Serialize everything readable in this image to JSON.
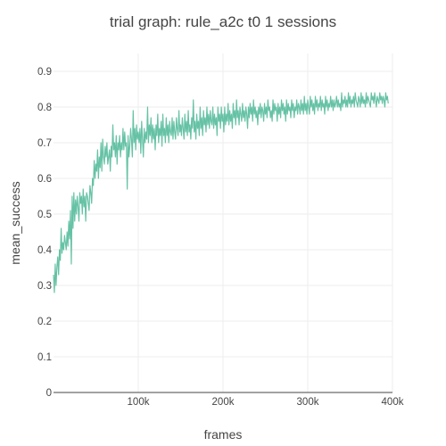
{
  "chart_data": {
    "type": "line",
    "title": "trial graph: rule_a2c t0 1 sessions",
    "xlabel": "frames",
    "ylabel": "mean_success",
    "xlim": [
      0,
      400000
    ],
    "ylim": [
      0,
      0.95
    ],
    "x_ticks": [
      100000,
      200000,
      300000,
      400000
    ],
    "x_tick_labels": [
      "100k",
      "200k",
      "300k",
      "400k"
    ],
    "y_ticks": [
      0,
      0.1,
      0.2,
      0.3,
      0.4,
      0.5,
      0.6,
      0.7,
      0.8,
      0.9
    ],
    "y_tick_labels": [
      "0",
      "0.1",
      "0.2",
      "0.3",
      "0.4",
      "0.5",
      "0.6",
      "0.7",
      "0.8",
      "0.9"
    ],
    "grid": true,
    "line_color": "#66c2a5",
    "series": [
      {
        "x_start": 0,
        "x_step": 1000,
        "values": [
          0.33,
          0.28,
          0.36,
          0.3,
          0.35,
          0.38,
          0.33,
          0.4,
          0.37,
          0.46,
          0.39,
          0.42,
          0.4,
          0.44,
          0.42,
          0.4,
          0.45,
          0.41,
          0.48,
          0.43,
          0.51,
          0.36,
          0.55,
          0.46,
          0.56,
          0.48,
          0.54,
          0.5,
          0.55,
          0.52,
          0.48,
          0.56,
          0.53,
          0.55,
          0.5,
          0.57,
          0.52,
          0.55,
          0.48,
          0.56,
          0.55,
          0.53,
          0.51,
          0.58,
          0.56,
          0.53,
          0.6,
          0.58,
          0.65,
          0.6,
          0.64,
          0.62,
          0.68,
          0.6,
          0.66,
          0.63,
          0.7,
          0.62,
          0.71,
          0.66,
          0.64,
          0.69,
          0.66,
          0.7,
          0.64,
          0.66,
          0.68,
          0.62,
          0.69,
          0.66,
          0.75,
          0.68,
          0.7,
          0.66,
          0.72,
          0.64,
          0.7,
          0.68,
          0.72,
          0.66,
          0.7,
          0.68,
          0.74,
          0.68,
          0.73,
          0.69,
          0.7,
          0.57,
          0.72,
          0.66,
          0.69,
          0.74,
          0.71,
          0.66,
          0.79,
          0.7,
          0.74,
          0.68,
          0.75,
          0.71,
          0.73,
          0.7,
          0.74,
          0.67,
          0.76,
          0.71,
          0.66,
          0.74,
          0.7,
          0.73,
          0.71,
          0.8,
          0.7,
          0.75,
          0.72,
          0.77,
          0.7,
          0.75,
          0.71,
          0.74,
          0.68,
          0.75,
          0.72,
          0.78,
          0.7,
          0.74,
          0.72,
          0.76,
          0.69,
          0.78,
          0.72,
          0.74,
          0.7,
          0.77,
          0.72,
          0.75,
          0.7,
          0.76,
          0.73,
          0.72,
          0.77,
          0.71,
          0.76,
          0.73,
          0.71,
          0.77,
          0.74,
          0.72,
          0.79,
          0.73,
          0.75,
          0.72,
          0.77,
          0.74,
          0.71,
          0.78,
          0.73,
          0.76,
          0.72,
          0.79,
          0.73,
          0.75,
          0.71,
          0.77,
          0.74,
          0.82,
          0.73,
          0.76,
          0.71,
          0.78,
          0.74,
          0.76,
          0.72,
          0.8,
          0.74,
          0.77,
          0.72,
          0.79,
          0.75,
          0.77,
          0.73,
          0.8,
          0.75,
          0.78,
          0.74,
          0.79,
          0.76,
          0.75,
          0.8,
          0.74,
          0.78,
          0.75,
          0.77,
          0.72,
          0.8,
          0.76,
          0.78,
          0.74,
          0.8,
          0.76,
          0.78,
          0.73,
          0.8,
          0.75,
          0.78,
          0.76,
          0.81,
          0.75,
          0.79,
          0.76,
          0.78,
          0.74,
          0.81,
          0.77,
          0.79,
          0.75,
          0.82,
          0.77,
          0.79,
          0.75,
          0.8,
          0.78,
          0.76,
          0.81,
          0.77,
          0.79,
          0.76,
          0.8,
          0.78,
          0.74,
          0.8,
          0.77,
          0.81,
          0.78,
          0.8,
          0.76,
          0.82,
          0.78,
          0.8,
          0.77,
          0.79,
          0.75,
          0.8,
          0.78,
          0.81,
          0.77,
          0.8,
          0.79,
          0.76,
          0.81,
          0.78,
          0.8,
          0.77,
          0.82,
          0.79,
          0.8,
          0.77,
          0.79,
          0.76,
          0.82,
          0.78,
          0.81,
          0.79,
          0.8,
          0.76,
          0.81,
          0.78,
          0.8,
          0.77,
          0.82,
          0.79,
          0.81,
          0.78,
          0.8,
          0.76,
          0.82,
          0.78,
          0.81,
          0.79,
          0.8,
          0.77,
          0.82,
          0.79,
          0.81,
          0.77,
          0.8,
          0.79,
          0.82,
          0.78,
          0.81,
          0.8,
          0.78,
          0.82,
          0.79,
          0.81,
          0.78,
          0.83,
          0.79,
          0.81,
          0.78,
          0.82,
          0.8,
          0.78,
          0.83,
          0.8,
          0.82,
          0.79,
          0.81,
          0.78,
          0.83,
          0.8,
          0.82,
          0.79,
          0.81,
          0.8,
          0.83,
          0.79,
          0.82,
          0.8,
          0.81,
          0.78,
          0.83,
          0.8,
          0.82,
          0.79,
          0.81,
          0.8,
          0.83,
          0.8,
          0.82,
          0.79,
          0.82,
          0.8,
          0.81,
          0.83,
          0.8,
          0.82,
          0.8,
          0.81,
          0.79,
          0.84,
          0.8,
          0.82,
          0.81,
          0.83,
          0.8,
          0.82,
          0.8,
          0.84,
          0.81,
          0.83,
          0.8,
          0.82,
          0.81,
          0.83,
          0.8,
          0.84,
          0.82,
          0.81,
          0.8,
          0.83,
          0.82,
          0.8,
          0.84,
          0.81,
          0.83,
          0.81,
          0.82,
          0.8,
          0.84,
          0.81,
          0.83,
          0.82,
          0.81,
          0.8,
          0.84,
          0.82,
          0.83,
          0.81,
          0.84,
          0.82,
          0.8,
          0.83,
          0.82,
          0.81,
          0.84,
          0.82,
          0.83,
          0.81,
          0.83,
          0.82,
          0.8,
          0.84,
          0.82,
          0.83,
          0.81
        ]
      }
    ]
  }
}
